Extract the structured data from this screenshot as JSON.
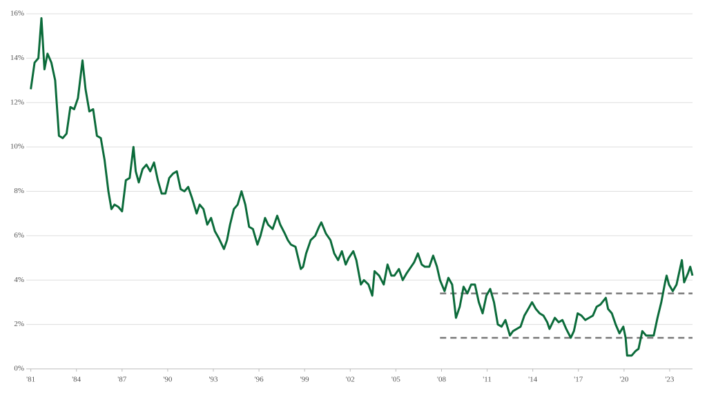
{
  "chart_data": {
    "type": "line",
    "x": [
      1981.0,
      1981.25,
      1981.5,
      1981.7,
      1981.9,
      1982.1,
      1982.35,
      1982.6,
      1982.85,
      1983.1,
      1983.35,
      1983.6,
      1983.85,
      1984.1,
      1984.4,
      1984.6,
      1984.85,
      1985.1,
      1985.35,
      1985.6,
      1985.85,
      1986.1,
      1986.3,
      1986.5,
      1986.75,
      1987.0,
      1987.25,
      1987.5,
      1987.75,
      1987.9,
      1988.1,
      1988.35,
      1988.6,
      1988.85,
      1989.1,
      1989.35,
      1989.6,
      1989.85,
      1990.1,
      1990.35,
      1990.6,
      1990.85,
      1991.1,
      1991.35,
      1991.6,
      1991.9,
      1992.1,
      1992.35,
      1992.6,
      1992.85,
      1993.1,
      1993.35,
      1993.7,
      1993.9,
      1994.1,
      1994.35,
      1994.6,
      1994.85,
      1995.1,
      1995.35,
      1995.6,
      1995.9,
      1996.1,
      1996.4,
      1996.6,
      1996.9,
      1997.2,
      1997.4,
      1997.7,
      1997.9,
      1998.1,
      1998.4,
      1998.75,
      1998.9,
      1999.1,
      1999.4,
      1999.7,
      1999.95,
      2000.1,
      2000.4,
      2000.7,
      2000.95,
      2001.2,
      2001.45,
      2001.7,
      2001.9,
      2002.2,
      2002.4,
      2002.7,
      2002.9,
      2003.2,
      2003.45,
      2003.6,
      2003.9,
      2004.2,
      2004.45,
      2004.7,
      2004.9,
      2005.2,
      2005.45,
      2005.7,
      2005.9,
      2006.2,
      2006.45,
      2006.7,
      2006.9,
      2007.2,
      2007.45,
      2007.7,
      2007.9,
      2008.2,
      2008.45,
      2008.7,
      2008.95,
      2009.2,
      2009.45,
      2009.7,
      2009.95,
      2010.2,
      2010.45,
      2010.7,
      2010.95,
      2011.2,
      2011.45,
      2011.7,
      2011.95,
      2012.2,
      2012.5,
      2012.7,
      2012.95,
      2013.2,
      2013.45,
      2013.7,
      2013.95,
      2014.2,
      2014.45,
      2014.7,
      2014.95,
      2015.1,
      2015.45,
      2015.7,
      2015.95,
      2016.2,
      2016.5,
      2016.7,
      2016.95,
      2017.2,
      2017.45,
      2017.7,
      2017.95,
      2018.2,
      2018.45,
      2018.8,
      2018.95,
      2019.2,
      2019.45,
      2019.7,
      2019.95,
      2020.1,
      2020.2,
      2020.5,
      2020.75,
      2020.95,
      2021.2,
      2021.45,
      2021.7,
      2021.95,
      2022.2,
      2022.45,
      2022.7,
      2022.8,
      2022.95,
      2023.2,
      2023.45,
      2023.8,
      2023.95,
      2024.2,
      2024.35,
      2024.5
    ],
    "series": [
      {
        "color": "#0b6b3a",
        "values": [
          12.6,
          13.8,
          14.0,
          15.8,
          13.5,
          14.2,
          13.8,
          13.0,
          10.5,
          10.4,
          10.6,
          11.8,
          11.7,
          12.2,
          13.9,
          12.6,
          11.6,
          11.7,
          10.5,
          10.4,
          9.4,
          8.0,
          7.2,
          7.4,
          7.3,
          7.1,
          8.5,
          8.6,
          10.0,
          8.9,
          8.4,
          9.0,
          9.2,
          8.9,
          9.3,
          8.5,
          7.9,
          7.9,
          8.6,
          8.8,
          8.9,
          8.1,
          8.0,
          8.2,
          7.7,
          7.0,
          7.4,
          7.2,
          6.5,
          6.8,
          6.2,
          5.9,
          5.4,
          5.8,
          6.5,
          7.2,
          7.4,
          8.0,
          7.4,
          6.4,
          6.3,
          5.6,
          6.0,
          6.8,
          6.5,
          6.3,
          6.9,
          6.5,
          6.1,
          5.8,
          5.6,
          5.5,
          4.5,
          4.6,
          5.2,
          5.8,
          6.0,
          6.4,
          6.6,
          6.1,
          5.8,
          5.2,
          4.9,
          5.3,
          4.7,
          5.0,
          5.3,
          4.9,
          3.8,
          4.0,
          3.8,
          3.3,
          4.4,
          4.2,
          3.8,
          4.7,
          4.2,
          4.2,
          4.5,
          4.0,
          4.3,
          4.5,
          4.8,
          5.2,
          4.7,
          4.6,
          4.6,
          5.1,
          4.6,
          4.0,
          3.5,
          4.1,
          3.8,
          2.3,
          2.8,
          3.7,
          3.4,
          3.8,
          3.8,
          3.0,
          2.5,
          3.3,
          3.6,
          3.0,
          2.0,
          1.9,
          2.2,
          1.5,
          1.7,
          1.8,
          1.9,
          2.4,
          2.7,
          3.0,
          2.7,
          2.5,
          2.4,
          2.1,
          1.8,
          2.3,
          2.1,
          2.2,
          1.8,
          1.4,
          1.7,
          2.5,
          2.4,
          2.2,
          2.3,
          2.4,
          2.8,
          2.9,
          3.2,
          2.7,
          2.5,
          2.0,
          1.6,
          1.9,
          1.4,
          0.6,
          0.6,
          0.8,
          0.9,
          1.7,
          1.5,
          1.5,
          1.5,
          2.3,
          3.0,
          3.9,
          4.2,
          3.8,
          3.5,
          3.8,
          4.9,
          3.9,
          4.3,
          4.6,
          4.2
        ]
      }
    ],
    "reference_lines": [
      {
        "y": 3.4,
        "x": [
          2007.9,
          2024.5
        ],
        "color": "#777777"
      },
      {
        "y": 1.4,
        "x": [
          2007.9,
          2024.5
        ],
        "color": "#777777"
      }
    ],
    "xlim": [
      1980.7,
      2024.5
    ],
    "xticks": [
      {
        "value": 1981,
        "label": "'81"
      },
      {
        "value": 1984,
        "label": "'84"
      },
      {
        "value": 1987,
        "label": "'87"
      },
      {
        "value": 1990,
        "label": "'90"
      },
      {
        "value": 1993,
        "label": "'93"
      },
      {
        "value": 1996,
        "label": "'96"
      },
      {
        "value": 1999,
        "label": "'99"
      },
      {
        "value": 2002,
        "label": "'02"
      },
      {
        "value": 2005,
        "label": "'05"
      },
      {
        "value": 2008,
        "label": "'08"
      },
      {
        "value": 2011,
        "label": "'11"
      },
      {
        "value": 2014,
        "label": "'14"
      },
      {
        "value": 2017,
        "label": "'17"
      },
      {
        "value": 2020,
        "label": "'20"
      },
      {
        "value": 2023,
        "label": "'23"
      }
    ],
    "ylim": [
      0,
      16
    ],
    "yticks": [
      {
        "value": 0,
        "label": "0%"
      },
      {
        "value": 2,
        "label": "2%"
      },
      {
        "value": 4,
        "label": "4%"
      },
      {
        "value": 6,
        "label": "6%"
      },
      {
        "value": 8,
        "label": "8%"
      },
      {
        "value": 10,
        "label": "10%"
      },
      {
        "value": 12,
        "label": "12%"
      },
      {
        "value": 14,
        "label": "14%"
      },
      {
        "value": 16,
        "label": "16%"
      }
    ],
    "grid": true
  }
}
